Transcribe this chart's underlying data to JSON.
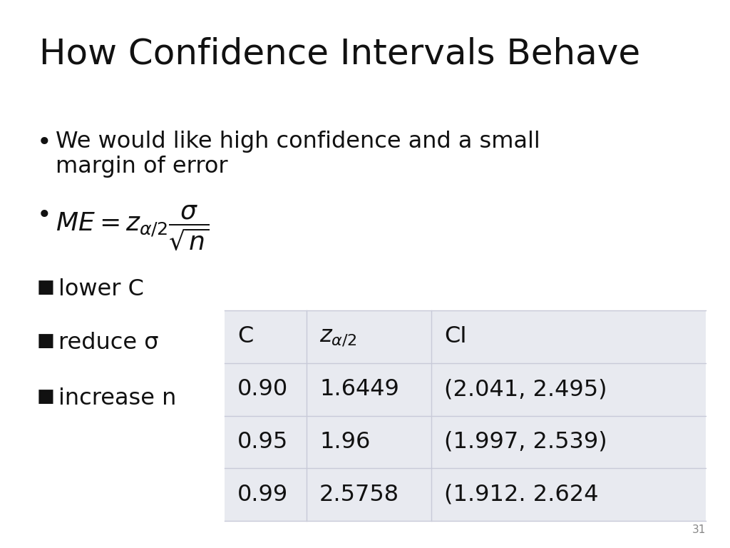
{
  "title": "How Confidence Intervals Behave",
  "bullet1_line1": "We would like high confidence and a small",
  "bullet1_line2": "margin of error",
  "bullet2_math": "$ME = z_{\\alpha/2} \\dfrac{\\sigma}{\\sqrt{n}}$",
  "square_bullets": [
    "lower C",
    "reduce σ",
    "increase n"
  ],
  "table_header": [
    "C",
    "zα/2",
    "CI"
  ],
  "table_rows": [
    [
      "0.90",
      "1.6449",
      "(2.041, 2.495)"
    ],
    [
      "0.95",
      "1.96",
      "(1.997, 2.539)"
    ],
    [
      "0.99",
      "2.5758",
      "(1.912. 2.624"
    ]
  ],
  "table_bg_color": "#e8eaf0",
  "table_line_color": "#c8cad8",
  "background_color": "#ffffff",
  "text_color": "#111111",
  "page_number": "31",
  "title_fontsize": 36,
  "body_fontsize": 23,
  "table_fontsize": 23,
  "small_fontsize": 11
}
